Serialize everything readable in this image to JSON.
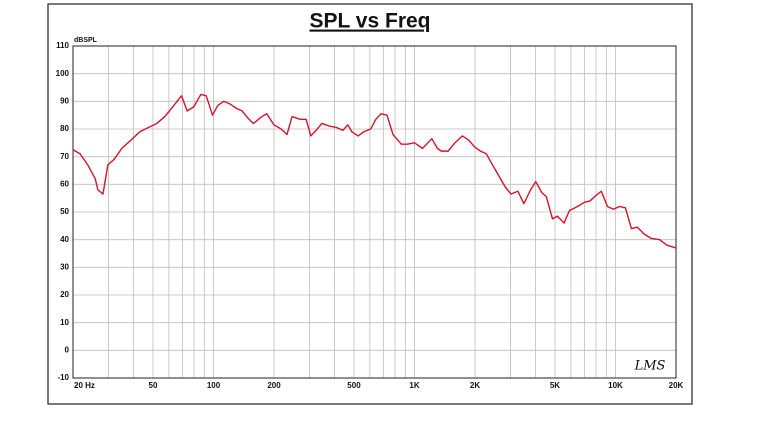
{
  "chart_data": {
    "type": "line",
    "title": "SPL vs Freq",
    "y_label": "dBSPL",
    "watermark": "LMS",
    "log_x": true,
    "grid": true,
    "xlim": [
      20,
      20000
    ],
    "ylim": [
      -10,
      110
    ],
    "yticks": [
      -10,
      0,
      10,
      20,
      30,
      40,
      50,
      60,
      70,
      80,
      90,
      100,
      110
    ],
    "xticks": [
      {
        "value": 20,
        "label": "20 Hz"
      },
      50,
      100,
      200,
      500,
      {
        "value": 1000,
        "label": "1K"
      },
      {
        "value": 2000,
        "label": "2K"
      },
      {
        "value": 5000,
        "label": "5K"
      },
      {
        "value": 10000,
        "label": "10K"
      },
      {
        "value": 20000,
        "label": "20K"
      }
    ],
    "x_minor_grid": [
      30,
      40,
      60,
      70,
      80,
      90,
      300,
      400,
      600,
      700,
      800,
      900,
      3000,
      4000,
      6000,
      7000,
      8000,
      9000
    ],
    "series": [
      {
        "name": "SPL",
        "color": "#d4142a",
        "x": [
          20,
          21.7,
          23.7,
          25.8,
          26.6,
          28.2,
          29.8,
          32,
          35,
          38.9,
          43,
          47.3,
          52.2,
          57.3,
          63.5,
          69.3,
          74,
          79.7,
          86.5,
          92,
          98.9,
          105,
          112.6,
          121,
          129.8,
          139,
          148,
          158,
          174,
          184,
          200,
          217,
          232,
          246,
          270,
          289,
          305,
          324,
          346,
          379,
          411,
          440,
          466,
          488,
          524,
          559,
          606,
          642,
          682,
          730,
          782,
          860,
          920,
          1000,
          1096,
          1220,
          1300,
          1360,
          1470,
          1590,
          1730,
          1860,
          1990,
          2130,
          2280,
          2400,
          2560,
          2830,
          3020,
          3270,
          3500,
          3750,
          4010,
          4300,
          4530,
          4860,
          5140,
          5550,
          5900,
          6470,
          7000,
          7470,
          8000,
          8500,
          9120,
          9770,
          10460,
          11200,
          12000,
          12840,
          13900,
          15000,
          16600,
          18000,
          20000
        ],
        "values": [
          72.5,
          71,
          67,
          62,
          58,
          56.5,
          67,
          69,
          73,
          76,
          79,
          80.5,
          82,
          84.5,
          88.5,
          92,
          86.5,
          88,
          92.5,
          92,
          85,
          88.5,
          90,
          89,
          87.5,
          86.5,
          84,
          82,
          84.5,
          85.5,
          81.5,
          80,
          78,
          84.5,
          83.5,
          83.5,
          77.5,
          79.5,
          82,
          81,
          80.5,
          79.5,
          81.5,
          79,
          77.5,
          79,
          80,
          83.5,
          85.5,
          85,
          78,
          74.5,
          74.5,
          75,
          73,
          76.5,
          73,
          72,
          72,
          75,
          77.5,
          76,
          73.5,
          72,
          71,
          68,
          64.5,
          59,
          56.5,
          57.5,
          53,
          57.5,
          61,
          57,
          55.5,
          47.5,
          48.5,
          46,
          50.5,
          52,
          53.5,
          54,
          56,
          57.5,
          52,
          51,
          52,
          51.5,
          44,
          44.5,
          42,
          40.5,
          40,
          38,
          37
        ]
      }
    ]
  }
}
